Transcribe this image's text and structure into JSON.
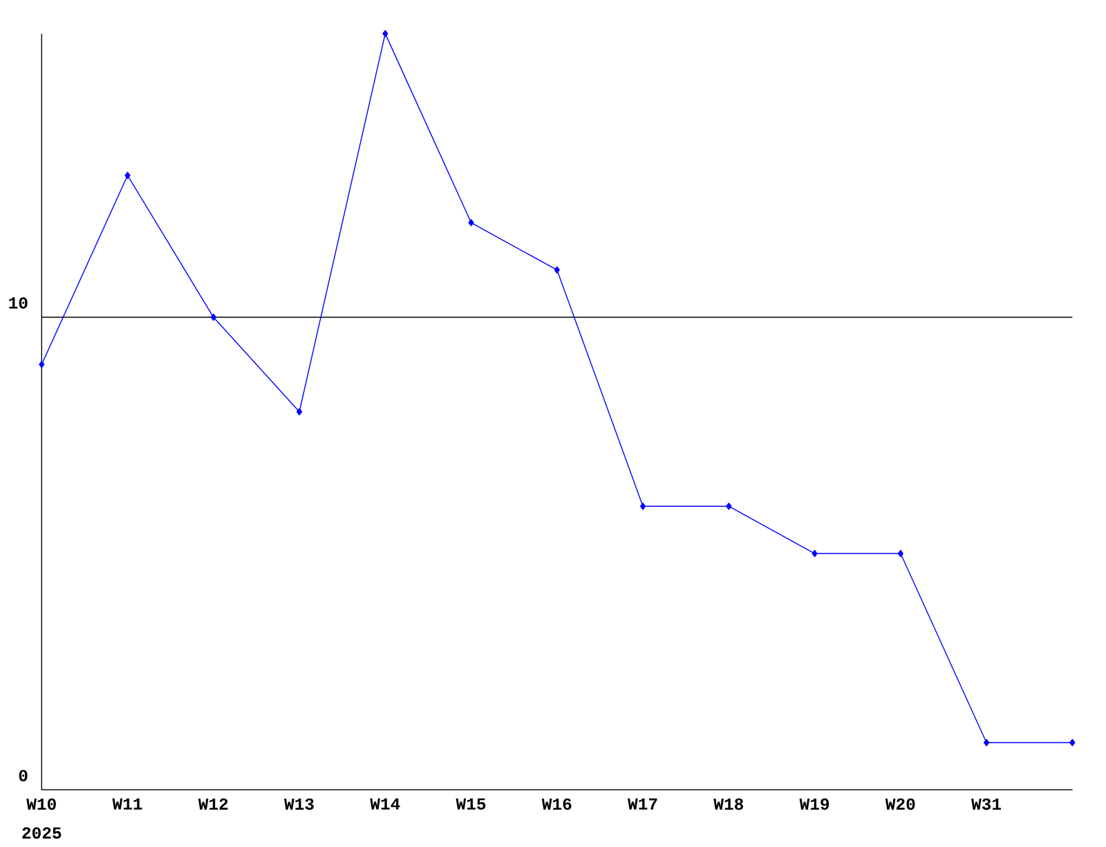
{
  "chart_data": {
    "type": "line",
    "categories": [
      "W10",
      "W11",
      "W12",
      "W13",
      "W14",
      "W15",
      "W16",
      "W17",
      "W18",
      "W19",
      "W20",
      "W31",
      null
    ],
    "values": [
      9,
      13,
      10,
      8,
      16,
      12,
      11,
      6,
      6,
      5,
      5,
      1,
      1
    ],
    "color": "#0000ff",
    "ylim": [
      0,
      16
    ],
    "yticks": [
      0,
      10
    ],
    "grid": "y",
    "marker": "diamond",
    "annotations": [
      "2025"
    ]
  }
}
